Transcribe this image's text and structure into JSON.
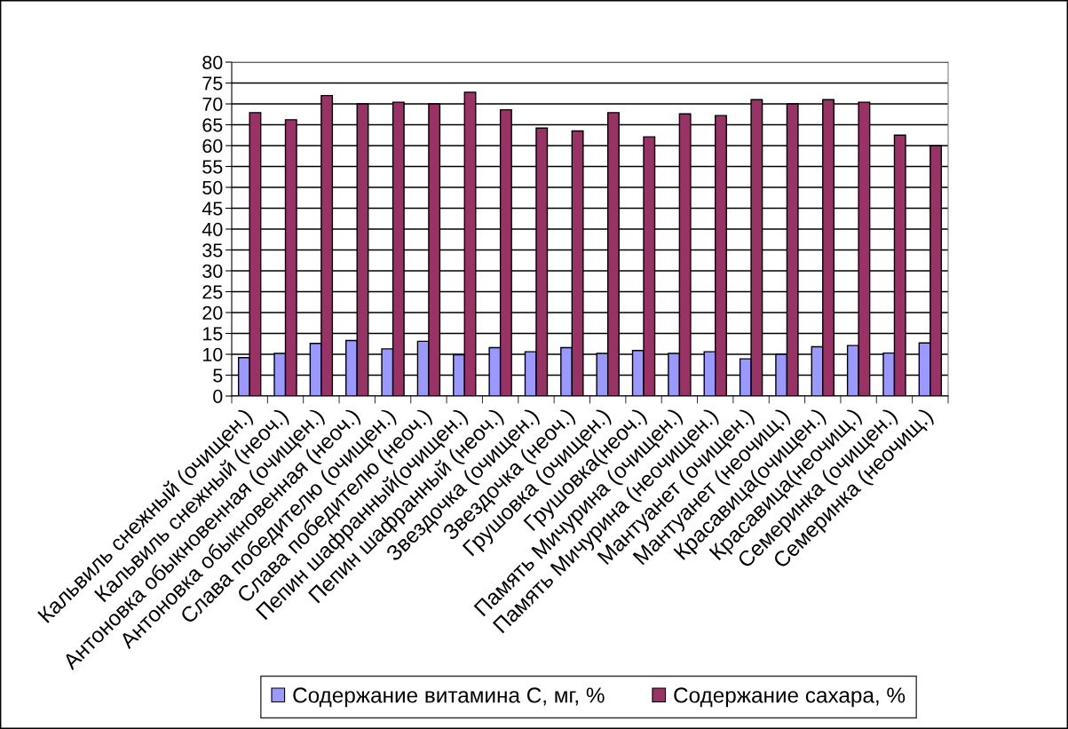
{
  "chart_data": {
    "type": "bar",
    "categories": [
      "Кальвиль снежный (очищен.)",
      "Кальвиль снежный (неоч.)",
      "Антоновка обыкновенная (очищен.)",
      "Антоновка обыкновенная (неоч.)",
      "Слава победителю (очищен.)",
      "Слава победителю (неоч.)",
      "Пепин шафранный(очищен.)",
      "Пепин шафранный (неоч.)",
      "Звездочка (очищен.)",
      "Звездочка (неоч.)",
      "Грушовка (очищен.)",
      "Грушовка(неоч.)",
      "Память Мичурина (очищен.)",
      "Память Мичурина (неочищен.)",
      "Мантуанет (очищен.)",
      "Мантуанет (неочищ.)",
      "Красавица(очищен.)",
      "Красавица(неочищ.)",
      "Семеринка (очищен.)",
      "Семеринка (неочищ.)"
    ],
    "series": [
      {
        "name": "Содержание витамина С, мг, %",
        "color": "#9999ff",
        "values": [
          9.2,
          10.2,
          12.6,
          13.3,
          11.3,
          13.1,
          9.9,
          11.6,
          10.6,
          11.6,
          10.2,
          10.9,
          10.2,
          10.6,
          8.9,
          10.0,
          11.8,
          12.1,
          10.3,
          12.7
        ]
      },
      {
        "name": "Содержание сахара, %",
        "color": "#993366",
        "values": [
          67.9,
          66.2,
          72.0,
          70.0,
          70.4,
          70.0,
          72.8,
          68.6,
          64.2,
          63.5,
          67.9,
          62.1,
          67.6,
          67.2,
          71.0,
          70.0,
          71.0,
          70.4,
          62.5,
          60.0
        ]
      }
    ],
    "ylim": [
      0,
      80
    ],
    "yticks": [
      0,
      5,
      10,
      15,
      20,
      25,
      30,
      35,
      40,
      45,
      50,
      55,
      60,
      65,
      70,
      75,
      80
    ],
    "grid": "y",
    "legend": "bottom"
  }
}
